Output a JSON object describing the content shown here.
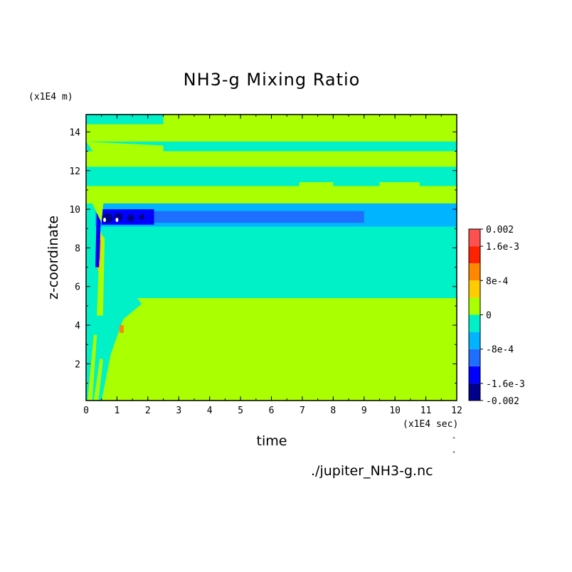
{
  "chart_data": {
    "type": "heatmap",
    "title": "NH3-g Mixing Ratio",
    "xlabel": "time",
    "ylabel": "z-coordinate",
    "x_unit": "(x1E4 sec)",
    "y_unit": "(x1E4 m)",
    "xlim": [
      0,
      12
    ],
    "ylim": [
      0.1,
      14.9
    ],
    "x_ticks": [
      0,
      1,
      2,
      3,
      4,
      5,
      6,
      7,
      8,
      9,
      10,
      11,
      12
    ],
    "y_ticks": [
      2,
      4,
      6,
      8,
      10,
      12,
      14
    ],
    "colorbar": {
      "range": [
        -0.002,
        0.002
      ],
      "tick_labels": [
        "0.002",
        "1.6e-3",
        "8e-4",
        "0",
        "-8e-4",
        "-1.6e-3",
        "-0.002"
      ],
      "levels": [
        {
          "min": -0.002,
          "max": -0.0016,
          "color": "#00008c"
        },
        {
          "min": -0.0016,
          "max": -0.0012,
          "color": "#0000ff"
        },
        {
          "min": -0.0012,
          "max": -0.0008,
          "color": "#1e6eff"
        },
        {
          "min": -0.0008,
          "max": -0.0004,
          "color": "#00b4ff"
        },
        {
          "min": -0.0004,
          "max": 0,
          "color": "#00f0c8"
        },
        {
          "min": 0,
          "max": 0.0004,
          "color": "#aaff00"
        },
        {
          "min": 0.0004,
          "max": 0.0008,
          "color": "#ffcc00"
        },
        {
          "min": 0.0008,
          "max": 0.0012,
          "color": "#ff8800"
        },
        {
          "min": 0.0012,
          "max": 0.0016,
          "color": "#ff2200"
        },
        {
          "min": 0.0016,
          "max": 0.002,
          "color": "#ff5050"
        }
      ]
    },
    "regions": [
      {
        "x": [
          0,
          12
        ],
        "z": [
          0.1,
          14.9
        ],
        "level": 5
      },
      {
        "x": [
          0,
          12
        ],
        "z": [
          5.4,
          10.3
        ],
        "level": 4
      },
      {
        "x": [
          0.3,
          12
        ],
        "z": [
          9.1,
          10.3
        ],
        "level": 3
      },
      {
        "x": [
          0.5,
          9
        ],
        "z": [
          9.3,
          9.9
        ],
        "level": 2
      },
      {
        "x": [
          0.5,
          2.2
        ],
        "z": [
          9.2,
          10.0
        ],
        "level": 1
      },
      {
        "x": [
          0,
          12
        ],
        "z": [
          11.2,
          12.2
        ],
        "level": 4
      },
      {
        "x": [
          0,
          12
        ],
        "z": [
          13.0,
          13.5
        ],
        "level": 4
      },
      {
        "x": [
          0,
          2.5
        ],
        "z": [
          14.4,
          14.9
        ],
        "level": 4
      },
      {
        "x": [
          6.9,
          8.0
        ],
        "z": [
          11.2,
          11.4
        ],
        "level": 5
      },
      {
        "x": [
          9.5,
          10.8
        ],
        "z": [
          11.2,
          11.4
        ],
        "level": 5
      }
    ]
  },
  "source_file": "./jupiter_NH3-g.nc",
  "corner_marks": [
    "˄",
    "˄"
  ]
}
